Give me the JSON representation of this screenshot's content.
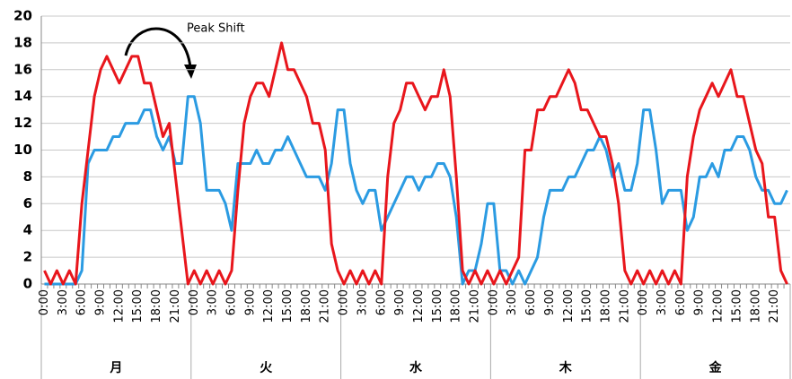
{
  "chart_data": {
    "type": "line",
    "annotation": "Peak Shift",
    "days": [
      "月",
      "火",
      "水",
      "木",
      "金"
    ],
    "categories": [
      "0:00",
      null,
      null,
      "3:00",
      null,
      null,
      "6:00",
      null,
      null,
      "9:00",
      null,
      null,
      "12:00",
      null,
      null,
      "15:00",
      null,
      null,
      "18:00",
      null,
      null,
      "21:00",
      null,
      null,
      "0:00",
      null,
      null,
      "3:00",
      null,
      null,
      "6:00",
      null,
      null,
      "9:00",
      null,
      null,
      "12:00",
      null,
      null,
      "15:00",
      null,
      null,
      "18:00",
      null,
      null,
      "21:00",
      null,
      null,
      "0:00",
      null,
      null,
      "3:00",
      null,
      null,
      "6:00",
      null,
      null,
      "9:00",
      null,
      null,
      "12:00",
      null,
      null,
      "15:00",
      null,
      null,
      "18:00",
      null,
      null,
      "21:00",
      null,
      null,
      "0:00",
      null,
      null,
      "3:00",
      null,
      null,
      "6:00",
      null,
      null,
      "9:00",
      null,
      null,
      "12:00",
      null,
      null,
      "15:00",
      null,
      null,
      "18:00",
      null,
      null,
      "21:00",
      null,
      null,
      "0:00",
      null,
      null,
      "3:00",
      null,
      null,
      "6:00",
      null,
      null,
      "9:00",
      null,
      null,
      "12:00",
      null,
      null,
      "15:00",
      null,
      null,
      "18:00",
      null,
      null,
      "21:00",
      null,
      null
    ],
    "series": [
      {
        "color": "#e8161c",
        "values": [
          1,
          0,
          1,
          0,
          1,
          0,
          6,
          10,
          14,
          16,
          17,
          16,
          15,
          16,
          17,
          17,
          15,
          15,
          13,
          11,
          12,
          8,
          4,
          0,
          1,
          0,
          1,
          0,
          1,
          0,
          1,
          7,
          12,
          14,
          15,
          15,
          14,
          16,
          18,
          16,
          16,
          15,
          14,
          12,
          12,
          10,
          3,
          1,
          0,
          1,
          0,
          1,
          0,
          1,
          0,
          8,
          12,
          13,
          15,
          15,
          14,
          13,
          14,
          14,
          16,
          14,
          8,
          1,
          0,
          1,
          0,
          1,
          0,
          1,
          0,
          1,
          2,
          10,
          10,
          13,
          13,
          14,
          14,
          15,
          16,
          15,
          13,
          13,
          12,
          11,
          11,
          9,
          6,
          1,
          0,
          1,
          0,
          1,
          0,
          1,
          0,
          1,
          0,
          8,
          11,
          13,
          14,
          15,
          14,
          15,
          16,
          14,
          14,
          12,
          10,
          9,
          5,
          5,
          1,
          0
        ]
      },
      {
        "color": "#2b9be2",
        "values": [
          0,
          0,
          0,
          0,
          0,
          0,
          1,
          9,
          10,
          10,
          10,
          11,
          11,
          12,
          12,
          12,
          13,
          13,
          11,
          10,
          11,
          9,
          9,
          14,
          14,
          12,
          7,
          7,
          7,
          6,
          4,
          9,
          9,
          9,
          10,
          9,
          9,
          10,
          10,
          11,
          10,
          9,
          8,
          8,
          8,
          7,
          9,
          13,
          13,
          9,
          7,
          6,
          7,
          7,
          4,
          5,
          6,
          7,
          8,
          8,
          7,
          8,
          8,
          9,
          9,
          8,
          5,
          0,
          1,
          1,
          3,
          6,
          6,
          1,
          1,
          0,
          1,
          0,
          1,
          2,
          5,
          7,
          7,
          7,
          8,
          8,
          9,
          10,
          10,
          11,
          10,
          8,
          9,
          7,
          7,
          9,
          13,
          13,
          10,
          6,
          7,
          7,
          7,
          4,
          5,
          8,
          8,
          9,
          8,
          10,
          10,
          11,
          11,
          10,
          8,
          7,
          7,
          6,
          6,
          7
        ]
      }
    ],
    "ylim": [
      0,
      20
    ],
    "yticks": [
      0,
      2,
      4,
      6,
      8,
      10,
      12,
      14,
      16,
      18,
      20
    ],
    "grid": true
  }
}
